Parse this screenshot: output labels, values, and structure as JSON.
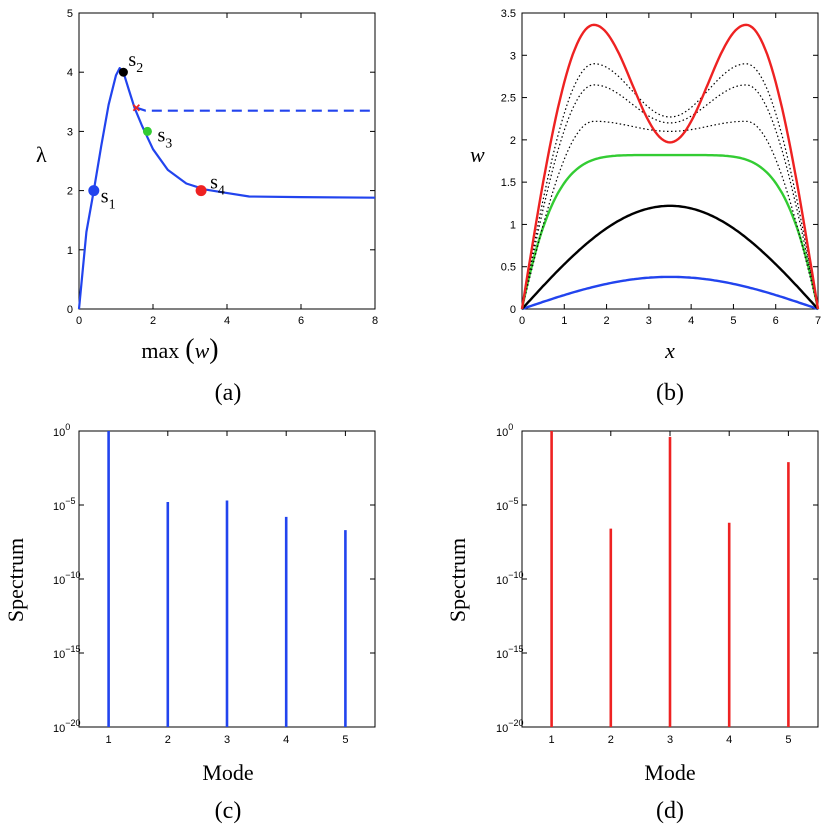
{
  "chart_data": [
    {
      "panel_label": "(a)",
      "type": "line",
      "xlabel_prefix": "max",
      "xlabel_var": "w",
      "ylabel": "λ",
      "xlim": [
        0,
        8
      ],
      "ylim": [
        0,
        5
      ],
      "xticks": [
        "0",
        "2",
        "4",
        "6",
        "8"
      ],
      "yticks": [
        "0",
        "1",
        "2",
        "3",
        "4",
        "5"
      ],
      "colors": {
        "curve": "#2244ee",
        "s1": "#2244ee",
        "s2": "#000000",
        "s3": "#33cc33",
        "s4": "#ee2222",
        "bifurcation": "#ee2222"
      },
      "series": [
        {
          "name": "branch",
          "style": "solid",
          "x": [
            0,
            0.2,
            0.4,
            0.6,
            0.8,
            1.0,
            1.1,
            1.2,
            1.35,
            1.5,
            1.7,
            2.0,
            2.4,
            2.9,
            3.4,
            3.9,
            4.6,
            6.0,
            8.0
          ],
          "y": [
            0,
            1.3,
            2.0,
            2.75,
            3.45,
            3.95,
            4.07,
            4.0,
            3.7,
            3.4,
            3.1,
            2.7,
            2.35,
            2.12,
            2.02,
            1.97,
            1.9,
            1.89,
            1.88
          ]
        },
        {
          "name": "secondary",
          "style": "dashed",
          "x": [
            1.55,
            1.8,
            3.0,
            5.0,
            8.0
          ],
          "y": [
            3.4,
            3.35,
            3.35,
            3.35,
            3.35
          ]
        }
      ],
      "points": [
        {
          "name": "s1",
          "sub": "1",
          "x": 0.4,
          "y": 2.0
        },
        {
          "name": "s2",
          "sub": "2",
          "x": 1.2,
          "y": 4.0
        },
        {
          "name": "s3",
          "sub": "3",
          "x": 1.85,
          "y": 3.0
        },
        {
          "name": "s4",
          "sub": "4",
          "x": 3.3,
          "y": 2.0
        }
      ],
      "bifurcation": {
        "x": 1.55,
        "y": 3.4
      }
    },
    {
      "panel_label": "(b)",
      "type": "line",
      "xlabel": "x",
      "ylabel": "w",
      "xlim": [
        0,
        7
      ],
      "ylim": [
        0,
        3.5
      ],
      "xticks": [
        "0",
        "1",
        "2",
        "3",
        "4",
        "5",
        "6",
        "7"
      ],
      "yticks": [
        "0",
        "0.5",
        "1",
        "1.5",
        "2",
        "2.5",
        "3",
        "3.5"
      ],
      "series": [
        {
          "name": "s1",
          "color": "#2244ee",
          "style": "solid",
          "kind": "arch",
          "max": 0.38
        },
        {
          "name": "s2",
          "color": "#000000",
          "style": "solid",
          "kind": "arch",
          "max": 1.22
        },
        {
          "name": "s3",
          "color": "#33cc33",
          "style": "solid",
          "kind": "flat",
          "max": 1.82
        },
        {
          "name": "dotted-1",
          "color": "#000000",
          "style": "dotted",
          "kind": "twin",
          "peak": 2.22,
          "center": 2.1
        },
        {
          "name": "dotted-2",
          "color": "#000000",
          "style": "dotted",
          "kind": "twin",
          "peak": 2.65,
          "center": 2.2
        },
        {
          "name": "dotted-3",
          "color": "#000000",
          "style": "dotted",
          "kind": "twin",
          "peak": 2.9,
          "center": 2.27
        },
        {
          "name": "s4",
          "color": "#ee2222",
          "style": "solid",
          "kind": "twin",
          "peak": 3.36,
          "center": 1.97
        }
      ]
    },
    {
      "panel_label": "(c)",
      "type": "bar",
      "xlabel": "Mode",
      "ylabel": "Spectrum",
      "color": "#2244ee",
      "categories": [
        "1",
        "2",
        "3",
        "4",
        "5"
      ],
      "values_log10": [
        0,
        -4.8,
        -4.7,
        -5.8,
        -6.7
      ],
      "ylim_log10": [
        -20,
        0
      ],
      "ytick_base": "10",
      "ytick_exps": [
        "0",
        "−5",
        "−10",
        "−15",
        "−20"
      ]
    },
    {
      "panel_label": "(d)",
      "type": "bar",
      "xlabel": "Mode",
      "ylabel": "Spectrum",
      "color": "#ee2222",
      "categories": [
        "1",
        "2",
        "3",
        "4",
        "5"
      ],
      "values_log10": [
        0,
        -6.6,
        -0.4,
        -6.2,
        -2.1
      ],
      "ylim_log10": [
        -20,
        0
      ],
      "ytick_base": "10",
      "ytick_exps": [
        "0",
        "−5",
        "−10",
        "−15",
        "−20"
      ]
    }
  ]
}
